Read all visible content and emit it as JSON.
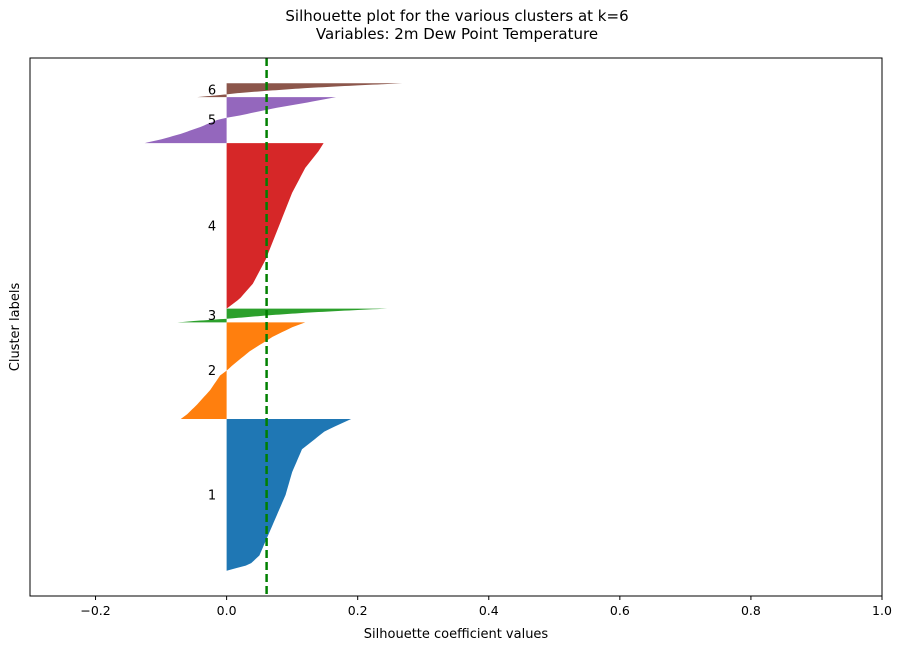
{
  "chart_data": {
    "type": "silhouette",
    "title": "Silhouette plot for the various clusters at k=6",
    "subtitle": "Variables: 2m Dew Point Temperature",
    "xlabel": "Silhouette coefficient values",
    "ylabel": "Cluster labels",
    "xlim": [
      -0.3,
      1.0
    ],
    "xticks": [
      -0.2,
      0.0,
      0.2,
      0.4,
      0.6,
      0.8,
      1.0
    ],
    "xtick_labels": [
      "−0.2",
      "0.0",
      "0.2",
      "0.4",
      "0.6",
      "0.8",
      "1.0"
    ],
    "ylim": [
      0,
      1170
    ],
    "yticks_visible": false,
    "grid": false,
    "average_silhouette": 0.061,
    "average_line": {
      "color": "#008000",
      "style": "dashed"
    },
    "clusters": [
      {
        "label": "1",
        "color": "#1f77b4",
        "y_lower": 55,
        "y_upper": 385,
        "profile": [
          [
            0,
            0.19
          ],
          [
            0.03,
            0.175
          ],
          [
            0.08,
            0.15
          ],
          [
            0.2,
            0.115
          ],
          [
            0.35,
            0.1
          ],
          [
            0.5,
            0.09
          ],
          [
            0.65,
            0.075
          ],
          [
            0.8,
            0.06
          ],
          [
            0.9,
            0.05
          ],
          [
            0.96,
            0.035
          ],
          [
            1.0,
            0.0
          ]
        ]
      },
      {
        "label": "2",
        "color": "#ff7f0e",
        "y_lower": 385,
        "y_upper": 595,
        "profile": [
          [
            0,
            0.12
          ],
          [
            0.05,
            0.1
          ],
          [
            0.15,
            0.07
          ],
          [
            0.3,
            0.035
          ],
          [
            0.45,
            0.008
          ],
          [
            0.5,
            0.0
          ],
          [
            0.55,
            -0.01
          ],
          [
            0.7,
            -0.025
          ],
          [
            0.85,
            -0.045
          ],
          [
            0.95,
            -0.06
          ],
          [
            1.0,
            -0.07
          ]
        ]
      },
      {
        "label": "3",
        "color": "#2ca02c",
        "y_lower": 595,
        "y_upper": 625,
        "profile": [
          [
            0,
            0.245
          ],
          [
            0.1,
            0.2
          ],
          [
            0.3,
            0.12
          ],
          [
            0.5,
            0.06
          ],
          [
            0.7,
            0.01
          ],
          [
            0.8,
            -0.02
          ],
          [
            0.9,
            -0.05
          ],
          [
            1.0,
            -0.075
          ]
        ]
      },
      {
        "label": "4",
        "color": "#d62728",
        "y_lower": 625,
        "y_upper": 985,
        "profile": [
          [
            0,
            0.148
          ],
          [
            0.05,
            0.14
          ],
          [
            0.15,
            0.12
          ],
          [
            0.3,
            0.1
          ],
          [
            0.5,
            0.08
          ],
          [
            0.7,
            0.06
          ],
          [
            0.85,
            0.04
          ],
          [
            0.94,
            0.02
          ],
          [
            1.0,
            0.0
          ]
        ]
      },
      {
        "label": "5",
        "color": "#9467bd",
        "y_lower": 985,
        "y_upper": 1085,
        "profile": [
          [
            0,
            0.167
          ],
          [
            0.1,
            0.13
          ],
          [
            0.25,
            0.07
          ],
          [
            0.4,
            0.02
          ],
          [
            0.45,
            0.0
          ],
          [
            0.5,
            -0.015
          ],
          [
            0.65,
            -0.04
          ],
          [
            0.8,
            -0.07
          ],
          [
            0.92,
            -0.1
          ],
          [
            1.0,
            -0.125
          ]
        ]
      },
      {
        "label": "6",
        "color": "#8c564b",
        "y_lower": 1085,
        "y_upper": 1115,
        "profile": [
          [
            0,
            0.268
          ],
          [
            0.15,
            0.2
          ],
          [
            0.35,
            0.12
          ],
          [
            0.55,
            0.06
          ],
          [
            0.7,
            0.02
          ],
          [
            0.8,
            0.0
          ],
          [
            0.85,
            -0.01
          ],
          [
            1.0,
            -0.045
          ]
        ]
      }
    ]
  }
}
